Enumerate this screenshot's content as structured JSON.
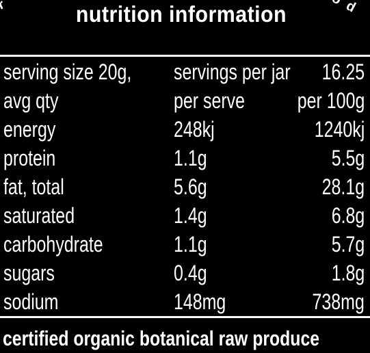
{
  "corner_text": {
    "left": "r",
    "right": "o d"
  },
  "title": "nutrition information",
  "rows": [
    [
      "serving size 20g,",
      "servings per jar",
      "16.25"
    ],
    [
      "avg qty",
      "per serve",
      "per 100g"
    ],
    [
      "energy",
      "248kj",
      "1240kj"
    ],
    [
      "protein",
      "1.1g",
      "5.5g"
    ],
    [
      "fat, total",
      "5.6g",
      "28.1g"
    ],
    [
      "saturated",
      "1.4g",
      "6.8g"
    ],
    [
      "carbohydrate",
      "1.1g",
      "5.7g"
    ],
    [
      "sugars",
      "0.4g",
      "1.8g"
    ],
    [
      "sodium",
      "148mg",
      "738mg"
    ]
  ],
  "footer": "certified organic botanical raw produce",
  "colors": {
    "background": "#000000",
    "text": "#ffffff"
  }
}
